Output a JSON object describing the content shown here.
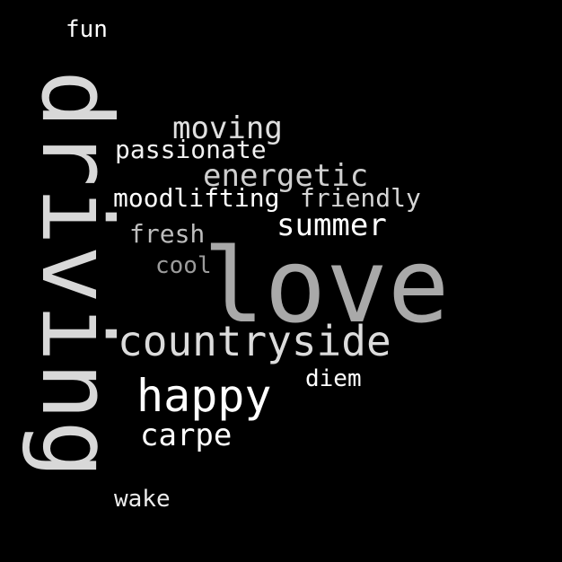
{
  "background_color": "#000000",
  "words": [
    {
      "key": "fun",
      "text": "fun",
      "color": "#ffffff"
    },
    {
      "key": "moving",
      "text": "moving",
      "color": "#e0e0e0"
    },
    {
      "key": "passionate",
      "text": "passionate",
      "color": "#f2f2f2"
    },
    {
      "key": "energetic",
      "text": "energetic",
      "color": "#cfcfcf"
    },
    {
      "key": "moodlifting",
      "text": "moodlifting",
      "color": "#ffffff"
    },
    {
      "key": "friendly",
      "text": "friendly",
      "color": "#d6d6d6"
    },
    {
      "key": "summer",
      "text": "summer",
      "color": "#ffffff"
    },
    {
      "key": "fresh",
      "text": "fresh",
      "color": "#bdbdbd"
    },
    {
      "key": "cool",
      "text": "cool",
      "color": "#9c9c9c"
    },
    {
      "key": "love",
      "text": "love",
      "color": "#a9a9a9"
    },
    {
      "key": "countryside",
      "text": "countryside",
      "color": "#dcdcdc"
    },
    {
      "key": "diem",
      "text": "diem",
      "color": "#ffffff"
    },
    {
      "key": "happy",
      "text": "happy",
      "color": "#ffffff"
    },
    {
      "key": "carpe",
      "text": "carpe",
      "color": "#ffffff"
    },
    {
      "key": "wake",
      "text": "wake",
      "color": "#ececec"
    },
    {
      "key": "driving",
      "text": "driving",
      "color": "#d8d8d8"
    }
  ]
}
